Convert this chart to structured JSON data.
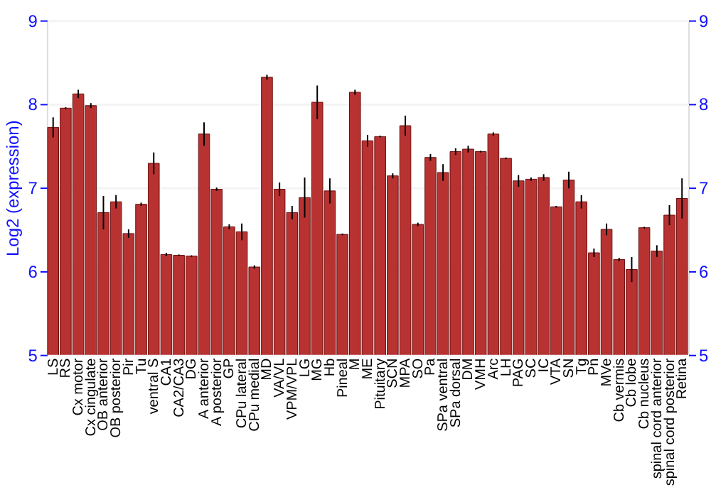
{
  "chart_data": {
    "type": "bar",
    "ylabel": "Log2 (expression)",
    "categories": [
      "LS",
      "RS",
      "Cx motor",
      "Cx cingulate",
      "OB anterior",
      "OB posterior",
      "Pir",
      "Tu",
      "ventral S",
      "CA1",
      "CA2/CA3",
      "DG",
      "A anterior",
      "A posterior",
      "GP",
      "CPu lateral",
      "CPu medial",
      "MD",
      "VA/VL",
      "VPM/VPL",
      "LG",
      "MG",
      "Hb",
      "Pineal",
      "M",
      "ME",
      "Pituitary",
      "SCN",
      "MPA",
      "SO",
      "Pa",
      "SPa ventral",
      "SPa dorsal",
      "DM",
      "VMH",
      "Arc",
      "LH",
      "PAG",
      "SC",
      "IC",
      "VTA",
      "SN",
      "Tg",
      "Pn",
      "MVe",
      "Cb vermis",
      "Cb lobe",
      "Cb nucleus",
      "spinal cord anterior",
      "spinal cord posterior",
      "Retina"
    ],
    "values": [
      7.72,
      7.95,
      8.12,
      7.98,
      6.7,
      6.83,
      6.45,
      6.8,
      7.29,
      6.2,
      6.19,
      6.18,
      7.64,
      6.98,
      6.53,
      6.47,
      6.05,
      8.32,
      6.98,
      6.7,
      6.88,
      8.02,
      6.96,
      6.44,
      8.14,
      7.56,
      7.61,
      7.14,
      7.74,
      6.56,
      7.36,
      7.18,
      7.43,
      7.46,
      7.43,
      7.64,
      7.35,
      7.08,
      7.1,
      7.12,
      6.77,
      7.09,
      6.83,
      6.22,
      6.5,
      6.14,
      6.02,
      6.52,
      6.24,
      6.67,
      6.87
    ],
    "errors": [
      0.12,
      0.01,
      0.05,
      0.03,
      0.2,
      0.08,
      0.05,
      0.02,
      0.13,
      0.02,
      0.01,
      0.01,
      0.14,
      0.02,
      0.03,
      0.1,
      0.02,
      0.03,
      0.08,
      0.08,
      0.24,
      0.2,
      0.15,
      0.01,
      0.03,
      0.07,
      0.01,
      0.03,
      0.12,
      0.02,
      0.04,
      0.1,
      0.04,
      0.04,
      0.01,
      0.02,
      0.01,
      0.07,
      0.02,
      0.04,
      0.01,
      0.1,
      0.08,
      0.05,
      0.07,
      0.02,
      0.15,
      0.01,
      0.07,
      0.12,
      0.24
    ],
    "color": "#b83232",
    "ylim": [
      5,
      9
    ],
    "yticks": [
      5,
      6,
      7,
      8,
      9
    ],
    "y2lim": [
      5,
      9
    ],
    "y2ticks": [
      5,
      6,
      7,
      8,
      9
    ],
    "grid": "y"
  }
}
